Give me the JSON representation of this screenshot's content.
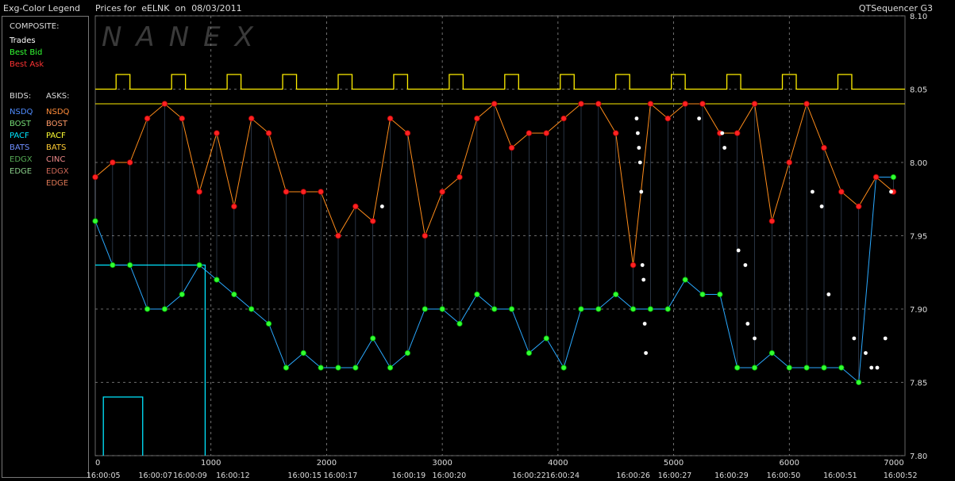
{
  "legend": {
    "title": "Exg-Color Legend",
    "composite_header": "COMPOSITE:",
    "composite": [
      {
        "label": "Trades",
        "color": "#ffffff"
      },
      {
        "label": "Best Bid",
        "color": "#33ff33"
      },
      {
        "label": "Best Ask",
        "color": "#ff3333"
      }
    ],
    "bids_header": "BIDS:",
    "asks_header": "ASKS:",
    "bids": [
      {
        "label": "NSDQ",
        "color": "#4f8cff"
      },
      {
        "label": "BOST",
        "color": "#77dd77"
      },
      {
        "label": "PACF",
        "color": "#00e5ff"
      },
      {
        "label": "BATS",
        "color": "#6f8fff"
      },
      {
        "label": "EDGX",
        "color": "#55aa55"
      },
      {
        "label": "EDGE",
        "color": "#88cc88"
      }
    ],
    "asks": [
      {
        "label": "NSDQ",
        "color": "#ff8c3a"
      },
      {
        "label": "BOST",
        "color": "#ff9966"
      },
      {
        "label": "PACF",
        "color": "#ffff33"
      },
      {
        "label": "BATS",
        "color": "#ffcc33"
      },
      {
        "label": "CINC",
        "color": "#ee8888"
      },
      {
        "label": "EDGX",
        "color": "#cc6655"
      },
      {
        "label": "EDGE",
        "color": "#dd7755"
      }
    ]
  },
  "header": {
    "prices_for": "Prices for",
    "symbol": "eELNK",
    "on": "on",
    "date": "08/03/2011",
    "app_name": "QTSequencer G3"
  },
  "watermark": "NANEX",
  "colors": {
    "background": "#000000",
    "grid": "#8a8a8a",
    "trade": "#ffffff",
    "best_bid": "#33ff33",
    "best_ask": "#ff2222",
    "bid_line": "#2aa9ff",
    "ask_line": "#ff8c1a",
    "pacf_ask": "#ffee00",
    "pacf_bid": "#00e5ff"
  },
  "chart_data": {
    "type": "line",
    "title": "",
    "xlabel": "",
    "ylabel": "",
    "xlim": [
      0,
      7000
    ],
    "ylim": [
      7.8,
      8.1
    ],
    "y_ticks": [
      "8.10",
      "8.05",
      "8.00",
      "7.95",
      "7.90",
      "7.85",
      "7.80"
    ],
    "y_tick_values": [
      8.1,
      8.05,
      8.0,
      7.95,
      7.9,
      7.85,
      7.8
    ],
    "x_ticks": [
      "0",
      "1000",
      "2000",
      "3000",
      "4000",
      "5000",
      "6000",
      "7000"
    ],
    "x_tick_values": [
      0,
      1000,
      2000,
      3000,
      4000,
      5000,
      6000,
      7000
    ],
    "time_labels": [
      "16:00:05",
      "16:00:07",
      "16:00:09",
      "16:00:12",
      "16:00:15",
      "16:00:17",
      "16:00:19",
      "16:00:20",
      "16:00:22",
      "16:00:24",
      "16:00:26",
      "16:00:27",
      "16:00:29",
      "16:00:50",
      "16:00:51",
      "16:00:52"
    ],
    "time_label_x": [
      70,
      520,
      820,
      1190,
      1810,
      2120,
      2710,
      3060,
      3750,
      4040,
      4650,
      5010,
      5500,
      5950,
      6440,
      6960
    ],
    "grid": true,
    "series": [
      {
        "name": "Best Bid",
        "x": [
          0,
          150,
          300,
          450,
          600,
          750,
          900,
          1050,
          1200,
          1350,
          1500,
          1650,
          1800,
          1950,
          2100,
          2250,
          2400,
          2550,
          2700,
          2850,
          3000,
          3150,
          3300,
          3450,
          3600,
          3750,
          3900,
          4050,
          4200,
          4350,
          4500,
          4650,
          4800,
          4950,
          5100,
          5250,
          5400,
          5550,
          5700,
          5850,
          6000,
          6150,
          6300,
          6450,
          6600,
          6750,
          6900
        ],
        "values": [
          7.96,
          7.93,
          7.93,
          7.9,
          7.9,
          7.91,
          7.93,
          7.92,
          7.91,
          7.9,
          7.89,
          7.86,
          7.87,
          7.86,
          7.86,
          7.86,
          7.88,
          7.86,
          7.87,
          7.9,
          7.9,
          7.89,
          7.91,
          7.9,
          7.9,
          7.87,
          7.88,
          7.86,
          7.9,
          7.9,
          7.91,
          7.9,
          7.9,
          7.9,
          7.92,
          7.91,
          7.91,
          7.86,
          7.86,
          7.87,
          7.86,
          7.86,
          7.86,
          7.86,
          7.85,
          7.99,
          7.99
        ]
      },
      {
        "name": "Best Ask",
        "x": [
          0,
          150,
          300,
          450,
          600,
          750,
          900,
          1050,
          1200,
          1350,
          1500,
          1650,
          1800,
          1950,
          2100,
          2250,
          2400,
          2550,
          2700,
          2850,
          3000,
          3150,
          3300,
          3450,
          3600,
          3750,
          3900,
          4050,
          4200,
          4350,
          4500,
          4650,
          4800,
          4950,
          5100,
          5250,
          5400,
          5550,
          5700,
          5850,
          6000,
          6150,
          6300,
          6450,
          6600,
          6750,
          6900
        ],
        "values": [
          7.99,
          8.0,
          8.0,
          8.03,
          8.04,
          8.03,
          7.98,
          8.02,
          7.97,
          8.03,
          8.02,
          7.98,
          7.98,
          7.98,
          7.95,
          7.97,
          7.96,
          8.03,
          8.02,
          7.95,
          7.98,
          7.99,
          8.03,
          8.04,
          8.01,
          8.02,
          8.02,
          8.03,
          8.04,
          8.04,
          8.02,
          7.93,
          8.04,
          8.03,
          8.04,
          8.04,
          8.02,
          8.02,
          8.04,
          7.96,
          8.0,
          8.04,
          8.01,
          7.98,
          7.97,
          7.99,
          7.98
        ]
      },
      {
        "name": "Trades",
        "x": [
          2480,
          4680,
          4690,
          4700,
          4710,
          4720,
          4730,
          4740,
          4750,
          4760,
          5220,
          5420,
          5440,
          5560,
          5620,
          5640,
          5700,
          6200,
          6280,
          6340,
          6560,
          6660,
          6710,
          6760,
          6830,
          6880
        ],
        "values": [
          7.97,
          8.03,
          8.02,
          8.01,
          8.0,
          7.98,
          7.93,
          7.92,
          7.89,
          7.87,
          8.03,
          8.02,
          8.01,
          7.94,
          7.93,
          7.89,
          7.88,
          7.98,
          7.97,
          7.91,
          7.88,
          7.87,
          7.86,
          7.86,
          7.88,
          7.98
        ]
      }
    ]
  }
}
